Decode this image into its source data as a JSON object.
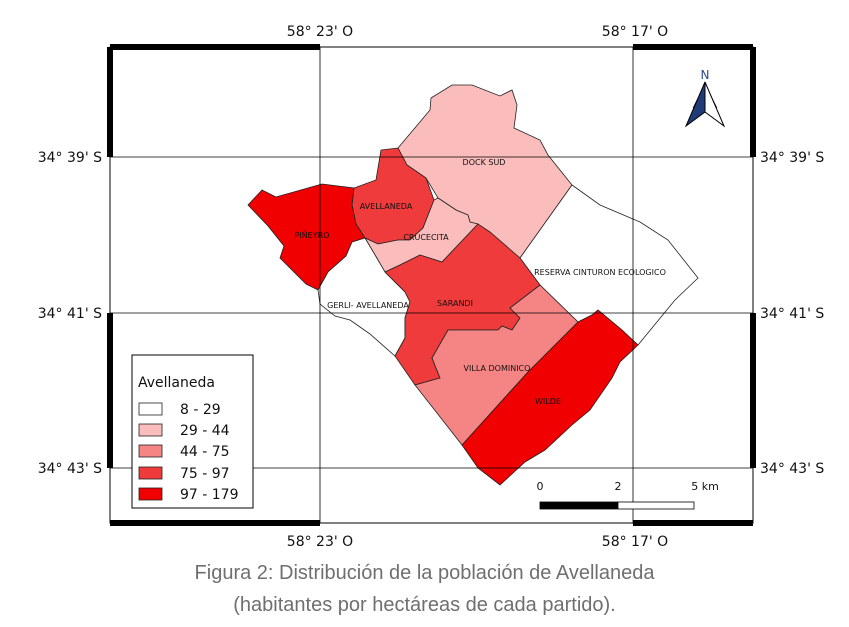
{
  "map": {
    "coords": {
      "top_left_lon": "58° 23' O",
      "top_right_lon": "58° 17' O",
      "bottom_left_lon": "58° 23' O",
      "bottom_right_lon": "58° 17' O",
      "lat_39": "34° 39' S",
      "lat_41": "34° 41' S",
      "lat_43": "34° 43' S"
    },
    "north_letter": "N",
    "districts": [
      {
        "name": "DOCK SUD",
        "class": "29 - 44",
        "color": "#fbbcbc"
      },
      {
        "name": "AVELLANEDA",
        "class": "75 - 97",
        "color": "#ef3b3b"
      },
      {
        "name": "PIÑEYRO",
        "class": "97 - 179",
        "color": "#f00000"
      },
      {
        "name": "CRUCECITA",
        "class": "29 - 44",
        "color": "#fbbcbc"
      },
      {
        "name": "RESERVA CINTURON ECOLOGICO",
        "class": "8 - 29",
        "color": "#ffffff"
      },
      {
        "name": "GERLI- AVELLANEDA",
        "class": "8 - 29",
        "color": "#ffffff"
      },
      {
        "name": "SARANDI",
        "class": "75 - 97",
        "color": "#ef3b3b"
      },
      {
        "name": "VILLA DOMINICO",
        "class": "44 - 75",
        "color": "#f58585"
      },
      {
        "name": "WILDE",
        "class": "97 - 179",
        "color": "#f00000"
      }
    ],
    "legend": {
      "title": "Avellaneda",
      "items": [
        {
          "label": "8 - 29",
          "color": "#ffffff"
        },
        {
          "label": "29 - 44",
          "color": "#fbbcbc"
        },
        {
          "label": "44 - 75",
          "color": "#f58585"
        },
        {
          "label": "75 - 97",
          "color": "#ef3b3b"
        },
        {
          "label": "97 - 179",
          "color": "#f00000"
        }
      ]
    },
    "scale": {
      "labels": [
        "0",
        "2",
        "5 km"
      ]
    }
  },
  "caption": {
    "line1": "Figura 2: Distribución de la población de Avellaneda",
    "line2": "(habitantes por hectáreas de cada partido)."
  }
}
